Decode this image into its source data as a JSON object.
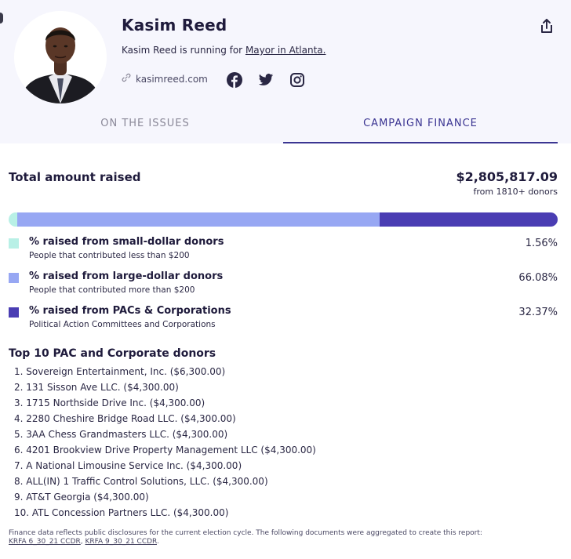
{
  "candidate": {
    "name": "Kasim Reed",
    "running_prefix": "Kasim Reed is running for ",
    "running_office": "Mayor in Atlanta.",
    "website": "kasimreed.com"
  },
  "social": [
    "facebook-icon",
    "twitter-icon",
    "instagram-icon"
  ],
  "tabs": [
    {
      "label": "ON THE ISSUES",
      "active": false
    },
    {
      "label": "CAMPAIGN FINANCE",
      "active": true
    }
  ],
  "finance": {
    "total_label": "Total amount raised",
    "total_amount": "$2,805,817.09",
    "donor_count": "from 1810+ donors",
    "breakdown": [
      {
        "title": "% raised from small-dollar donors",
        "subtitle": "People that contributed less than $200",
        "percent_text": "1.56%",
        "fraction": 0.0156,
        "color": "#b8f0e6"
      },
      {
        "title": "% raised from large-dollar donors",
        "subtitle": "People that contributed more than $200",
        "percent_text": "66.08%",
        "fraction": 0.6608,
        "color": "#97a7f3"
      },
      {
        "title": "% raised from PACs & Corporations",
        "subtitle": "Political Action Committees and Corporations",
        "percent_text": "32.37%",
        "fraction": 0.3237,
        "color": "#4a3db3"
      }
    ]
  },
  "top_donors": {
    "title": "Top 10 PAC and Corporate donors",
    "items": [
      "1. Sovereign Entertainment, Inc. ($6,300.00)",
      "2. 131 Sisson Ave LLC. ($4,300.00)",
      "3. 1715 Northside Drive Inc. ($4,300.00)",
      "4. 2280 Cheshire Bridge Road LLC. ($4,300.00)",
      "5. 3AA Chess Grandmasters LLC. ($4,300.00)",
      "6. 4201 Brookview Drive Property Management LLC ($4,300.00)",
      "7. A National Limousine Service Inc. ($4,300.00)",
      "8. ALL(IN) 1 Traffic Control Solutions, LLC. ($4,300.00)",
      "9. AT&T Georgia ($4,300.00)",
      "10. ATL Concession Partners LLC. ($4,300.00)"
    ]
  },
  "footnote": {
    "text": "Finance data reflects public disclosures for the current election cycle. The following documents were aggregated to create this report:",
    "docs": [
      "KRFA 6_30_21 CCDR",
      "KRFA 9_30_21 CCDR"
    ]
  }
}
